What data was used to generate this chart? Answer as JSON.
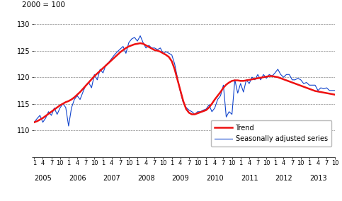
{
  "title_label": "2000 = 100",
  "ylim": [
    105,
    130
  ],
  "yticks": [
    105,
    110,
    115,
    120,
    125,
    130
  ],
  "ylabel_show": [
    110,
    115,
    120,
    125,
    130
  ],
  "grid_color": "#888888",
  "trend_color": "#ee1111",
  "seasonal_color": "#1144cc",
  "trend_linewidth": 1.8,
  "seasonal_linewidth": 0.8,
  "background_color": "#ffffff",
  "legend_trend": "Trend",
  "legend_seasonal": "Seasonally adjusted series",
  "start_year": 2005,
  "end_year": 2013,
  "trend": [
    111.5,
    111.7,
    112.0,
    112.3,
    112.7,
    113.1,
    113.5,
    113.9,
    114.3,
    114.7,
    115.0,
    115.3,
    115.5,
    115.8,
    116.2,
    116.7,
    117.2,
    117.8,
    118.4,
    119.0,
    119.6,
    120.2,
    120.7,
    121.2,
    121.7,
    122.2,
    122.7,
    123.2,
    123.7,
    124.2,
    124.7,
    125.1,
    125.5,
    125.8,
    126.0,
    126.2,
    126.3,
    126.4,
    126.3,
    126.0,
    125.7,
    125.4,
    125.1,
    125.0,
    124.8,
    124.5,
    124.2,
    123.8,
    123.0,
    121.5,
    119.5,
    117.5,
    115.5,
    114.0,
    113.3,
    113.0,
    113.0,
    113.2,
    113.4,
    113.6,
    113.8,
    114.3,
    115.0,
    115.8,
    116.5,
    117.2,
    118.0,
    118.6,
    119.0,
    119.3,
    119.4,
    119.4,
    119.3,
    119.3,
    119.4,
    119.5,
    119.6,
    119.7,
    119.8,
    119.9,
    120.0,
    120.1,
    120.2,
    120.2,
    120.1,
    120.0,
    119.8,
    119.6,
    119.4,
    119.2,
    119.0,
    118.8,
    118.6,
    118.4,
    118.2,
    118.0,
    117.8,
    117.6,
    117.4,
    117.3,
    117.2,
    117.1,
    117.0,
    116.9,
    116.8,
    116.7
  ],
  "seasonal": [
    111.5,
    112.2,
    112.8,
    111.5,
    112.3,
    113.5,
    112.8,
    114.2,
    113.0,
    114.2,
    115.0,
    114.3,
    110.8,
    114.2,
    115.8,
    116.5,
    115.8,
    117.2,
    118.5,
    119.0,
    118.0,
    120.5,
    119.5,
    121.5,
    120.8,
    122.3,
    122.8,
    123.5,
    124.2,
    124.8,
    125.3,
    125.8,
    124.5,
    126.5,
    127.2,
    127.5,
    126.8,
    127.8,
    126.5,
    125.5,
    126.0,
    125.5,
    125.5,
    125.2,
    125.5,
    124.5,
    124.8,
    124.5,
    124.2,
    122.5,
    119.8,
    117.2,
    115.2,
    114.3,
    113.8,
    113.5,
    113.0,
    113.5,
    113.5,
    113.8,
    114.0,
    114.8,
    113.5,
    114.2,
    115.8,
    116.5,
    118.5,
    112.5,
    113.5,
    113.0,
    119.5,
    117.0,
    118.8,
    117.2,
    119.5,
    118.8,
    120.0,
    119.5,
    120.5,
    119.5,
    120.5,
    119.8,
    120.5,
    120.2,
    120.8,
    121.5,
    120.5,
    120.0,
    120.5,
    120.5,
    119.5,
    119.5,
    119.8,
    119.5,
    118.8,
    119.0,
    118.5,
    118.5,
    118.5,
    117.5,
    118.0,
    117.8,
    118.0,
    117.5,
    117.5,
    117.5
  ],
  "xtick_months": [
    1,
    4,
    7,
    10
  ],
  "year_labels": [
    2005,
    2006,
    2007,
    2008,
    2009,
    2010,
    2011,
    2012,
    2013
  ]
}
